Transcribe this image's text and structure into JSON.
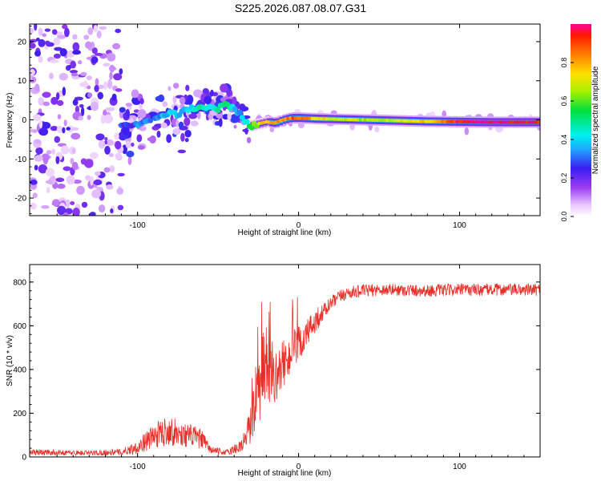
{
  "title": "S225.2026.087.08.07.G31",
  "chart_data": [
    {
      "type": "heatmap",
      "title": "S225.2026.087.08.07.G31",
      "xlabel": "Height of straight line (km)",
      "ylabel": "Frequency (Hz)",
      "xlim": [
        -167,
        150
      ],
      "ylim": [
        -24.5,
        24.5
      ],
      "xticks": [
        -100,
        0,
        100
      ],
      "yticks": [
        -20,
        -10,
        0,
        10,
        20
      ],
      "colorbar": {
        "label": "Normalized spectral amplitude",
        "range": [
          0,
          1
        ],
        "ticks": [
          "0.0",
          "0.2",
          "0.4",
          "0.6",
          "0.8"
        ],
        "colormap": "rainbow (white-violet-blue-cyan-green-yellow-red)"
      },
      "ridge": {
        "description": "narrow carrier line near 0 Hz, scattered noise at low heights",
        "x": [
          -110,
          -100,
          -90,
          -80,
          -70,
          -60,
          -50,
          -45,
          -40,
          -35,
          -30,
          -25,
          -20,
          -15,
          -10,
          -5,
          0,
          10,
          20,
          40,
          60,
          80,
          100,
          120,
          150
        ],
        "freq": [
          -1.5,
          -1.0,
          0.5,
          1.5,
          2.5,
          3.0,
          3.5,
          4.5,
          3.0,
          0.5,
          -1.5,
          -1.0,
          -0.5,
          -0.8,
          0.0,
          0.5,
          0.5,
          0.3,
          0.2,
          0.0,
          -0.2,
          -0.4,
          -0.5,
          -0.6,
          -0.6
        ],
        "amplitude": [
          0.25,
          0.3,
          0.3,
          0.35,
          0.4,
          0.45,
          0.45,
          0.5,
          0.4,
          0.35,
          0.55,
          0.7,
          0.8,
          0.85,
          0.8,
          0.85,
          0.9,
          0.75,
          0.7,
          0.65,
          0.7,
          0.75,
          0.95,
          1.0,
          0.95
        ]
      }
    },
    {
      "type": "line",
      "xlabel": "Height of straight line (km)",
      "ylabel": "SNR (10 * v/v)",
      "xlim": [
        -167,
        150
      ],
      "ylim": [
        0,
        880
      ],
      "xticks": [
        -100,
        0,
        100
      ],
      "yticks": [
        0,
        200,
        400,
        600,
        800
      ],
      "series": [
        {
          "name": "SNR",
          "color": "#e8302a",
          "x": [
            -167,
            -150,
            -130,
            -110,
            -100,
            -95,
            -90,
            -85,
            -80,
            -75,
            -70,
            -65,
            -60,
            -55,
            -50,
            -45,
            -40,
            -35,
            -30,
            -25,
            -22,
            -20,
            -17,
            -15,
            -10,
            -5,
            0,
            5,
            10,
            15,
            20,
            25,
            30,
            40,
            50,
            60,
            80,
            100,
            120,
            150
          ],
          "mean": [
            22,
            20,
            18,
            22,
            45,
            70,
            95,
            110,
            125,
            105,
            100,
            95,
            80,
            35,
            25,
            20,
            35,
            55,
            140,
            290,
            380,
            430,
            380,
            350,
            420,
            470,
            510,
            560,
            620,
            660,
            700,
            730,
            750,
            760,
            765,
            765,
            760,
            765,
            765,
            765
          ],
          "noise": [
            15,
            12,
            12,
            15,
            30,
            45,
            55,
            65,
            70,
            60,
            55,
            50,
            45,
            20,
            15,
            12,
            25,
            35,
            90,
            150,
            200,
            180,
            130,
            110,
            110,
            100,
            90,
            70,
            60,
            40,
            35,
            30,
            30,
            28,
            28,
            28,
            28,
            28,
            28,
            28
          ]
        }
      ]
    }
  ]
}
